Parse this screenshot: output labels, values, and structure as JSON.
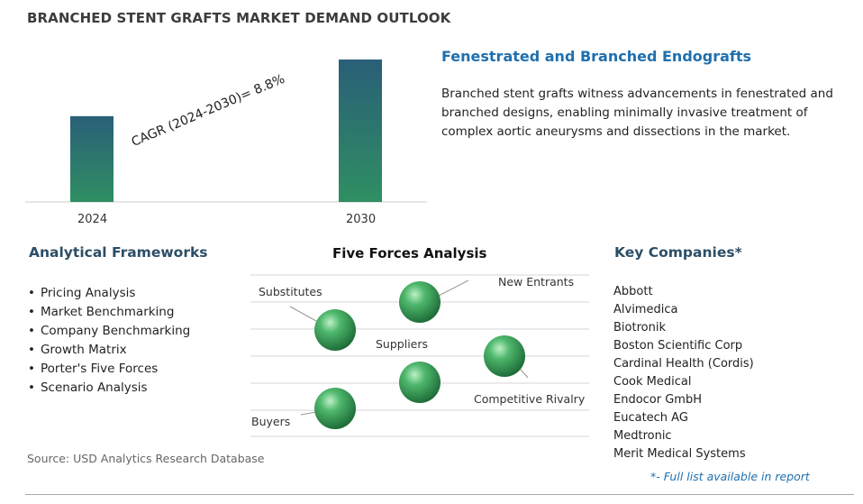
{
  "title": "BRANCHED STENT GRAFTS MARKET DEMAND OUTLOOK",
  "chart_data": {
    "type": "bar",
    "categories": [
      "2024",
      "2030"
    ],
    "values": [
      1.0,
      1.66
    ],
    "annotation": "CAGR (2024-2030)=  8.8%",
    "colors": {
      "bar_top": "#2a5f78",
      "bar_bottom": "#2f8f62",
      "axis": "#cccccc"
    }
  },
  "info": {
    "heading": "Fenestrated and Branched Endografts",
    "text": "Branched stent grafts witness advancements in fenestrated and branched designs, enabling minimally invasive treatment of complex aortic aneurysms and dissections in the market."
  },
  "frameworks": {
    "heading": "Analytical Frameworks",
    "items": [
      "Pricing Analysis",
      "Market Benchmarking",
      "Company Benchmarking",
      "Growth Matrix",
      "Porter's Five Forces",
      "Scenario Analysis"
    ]
  },
  "five_forces": {
    "heading": "Five Forces Analysis",
    "labels": {
      "new_entrants": "New Entrants",
      "substitutes": "Substitutes",
      "suppliers": "Suppliers",
      "competitive_rivalry": "Competitive Rivalry",
      "buyers": "Buyers"
    }
  },
  "companies": {
    "heading": "Key Companies*",
    "items": [
      "Abbott",
      "Alvimedica",
      "Biotronik",
      "Boston Scientific Corp",
      "Cardinal Health (Cordis)",
      "Cook Medical",
      "Endocor GmbH",
      "Eucatech AG",
      "Medtronic",
      "Merit Medical Systems"
    ],
    "note": "*- Full list available in report"
  },
  "source": "Source: USD Analytics Research Database"
}
